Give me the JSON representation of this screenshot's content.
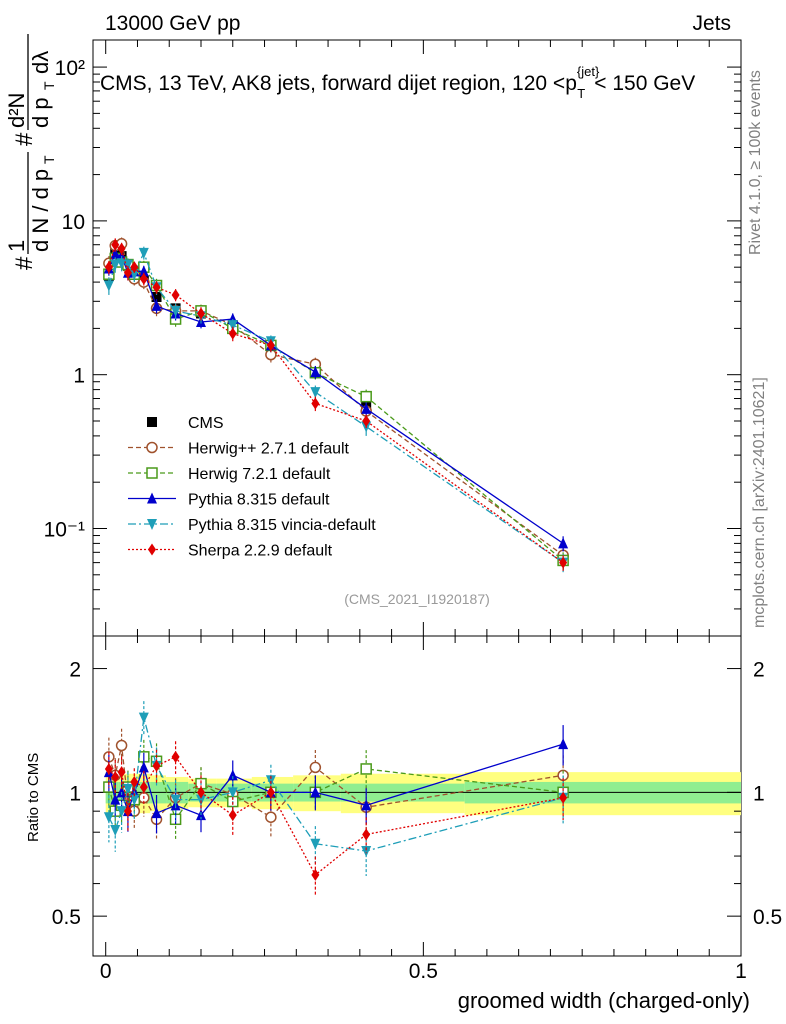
{
  "header": {
    "energy": "13000 GeV pp",
    "category": "Jets",
    "rivet": "Rivet 4.1.0, ≥ 100k events",
    "mcplots": "mcplots.cern.ch [arXiv:2401.10621]",
    "analysis_id": "(CMS_2021_I1920187)"
  },
  "chart_data": [
    {
      "type": "scatter",
      "panel": "main",
      "title": "CMS, 13 TeV, AK8 jets, forward dijet region, 120 <p_T^{jet}< 150 GeV",
      "title_pre": "CMS, 13 TeV, AK8 jets, forward dijet region, 120 <p",
      "title_sup": "{jet}",
      "title_sub": "T",
      "title_post": "< 150 GeV",
      "ylabel_parts": {
        "hash": "#",
        "one": "1",
        "dN": "d N / d p",
        "T": "T",
        "numer": "d²N",
        "denom": "d p",
        "dlam": "dλ"
      },
      "yscale": "log",
      "ylim": [
        0.02,
        150
      ],
      "xlim": [
        -0.02,
        1.0
      ],
      "ytick_labels": [
        "10⁻¹",
        "1",
        "10",
        "10²"
      ],
      "ytick_values": [
        0.1,
        1,
        10,
        100
      ],
      "x": [
        0.005,
        0.015,
        0.025,
        0.035,
        0.045,
        0.06,
        0.08,
        0.11,
        0.15,
        0.2,
        0.26,
        0.33,
        0.41,
        0.72
      ],
      "series": [
        {
          "name": "CMS",
          "color": "#000000",
          "marker": "square-filled",
          "dash": "",
          "values": [
            4.4,
            6.4,
            5.9,
            5.1,
            4.7,
            4.1,
            3.2,
            2.7,
            2.5,
            2.1,
            1.55,
            1.03,
            0.63,
            0.062
          ],
          "errors": [
            0.4,
            0.6,
            0.5,
            0.4,
            0.4,
            0.3,
            0.25,
            0.2,
            0.2,
            0.15,
            0.12,
            0.08,
            0.05,
            0.008
          ]
        },
        {
          "name": "Herwig++ 2.7.1 default",
          "color": "#a0522d",
          "marker": "circle-open",
          "dash": "5,3",
          "values": [
            5.3,
            6.9,
            7.1,
            5.0,
            4.2,
            4.0,
            2.7,
            2.6,
            2.6,
            2.1,
            1.35,
            1.17,
            0.58,
            0.067
          ],
          "errors": [
            0.6,
            0.7,
            0.7,
            0.5,
            0.4,
            0.4,
            0.3,
            0.3,
            0.25,
            0.2,
            0.15,
            0.12,
            0.07,
            0.008
          ]
        },
        {
          "name": "Herwig 7.2.1 default",
          "color": "#4a9a1a",
          "marker": "square-open",
          "dash": "5,3",
          "values": [
            4.5,
            5.7,
            5.4,
            5.2,
            4.5,
            5.0,
            3.8,
            2.3,
            2.6,
            2.0,
            1.55,
            1.03,
            0.72,
            0.062
          ],
          "errors": [
            0.5,
            0.6,
            0.5,
            0.5,
            0.4,
            0.5,
            0.4,
            0.25,
            0.25,
            0.2,
            0.15,
            0.1,
            0.08,
            0.008
          ]
        },
        {
          "name": "Pythia 8.315 default",
          "color": "#0000cc",
          "marker": "triangle-up",
          "dash": "",
          "values": [
            4.9,
            6.1,
            5.9,
            4.6,
            4.7,
            4.7,
            2.8,
            2.5,
            2.2,
            2.3,
            1.55,
            1.04,
            0.6,
            0.08
          ],
          "errors": [
            0.5,
            0.6,
            0.6,
            0.5,
            0.4,
            0.4,
            0.3,
            0.25,
            0.2,
            0.2,
            0.15,
            0.1,
            0.06,
            0.009
          ]
        },
        {
          "name": "Pythia 8.315 vincia-default",
          "color": "#1e9eb8",
          "marker": "triangle-down",
          "dash": "8,3,2,3",
          "values": [
            3.8,
            5.2,
            5.3,
            5.2,
            4.5,
            6.2,
            3.7,
            2.6,
            2.4,
            2.1,
            1.65,
            0.77,
            0.46,
            0.06
          ],
          "errors": [
            0.5,
            0.6,
            0.6,
            0.5,
            0.5,
            0.6,
            0.4,
            0.3,
            0.25,
            0.2,
            0.15,
            0.08,
            0.06,
            0.008
          ]
        },
        {
          "name": "Sherpa 2.2.9 default",
          "color": "#e00000",
          "marker": "diamond",
          "dash": "2,2",
          "values": [
            5.0,
            7.0,
            6.6,
            4.6,
            5.0,
            4.2,
            3.7,
            3.3,
            2.5,
            1.85,
            1.55,
            0.65,
            0.5,
            0.06
          ],
          "errors": [
            0.5,
            0.7,
            0.6,
            0.5,
            0.4,
            0.4,
            0.35,
            0.3,
            0.25,
            0.2,
            0.15,
            0.07,
            0.05,
            0.007
          ]
        }
      ]
    },
    {
      "type": "scatter",
      "panel": "ratio",
      "ylabel": "Ratio to CMS",
      "xlabel": "groomed width (charged-only)",
      "ylim": [
        0.4,
        2.4
      ],
      "yscale": "log",
      "ytick_labels": [
        "0.5",
        "1",
        "2"
      ],
      "ytick_values": [
        0.5,
        1,
        2
      ],
      "xtick_labels": [
        "0",
        "0.5",
        "1"
      ],
      "xtick_values": [
        0,
        0.5,
        1
      ],
      "band_inner": [
        0.06,
        0.06,
        0.06,
        0.06,
        0.06,
        0.06,
        0.06,
        0.06,
        0.05,
        0.05,
        0.05,
        0.05,
        0.05,
        0.06
      ],
      "band_outer": [
        0.12,
        0.12,
        0.11,
        0.11,
        0.11,
        0.11,
        0.1,
        0.09,
        0.08,
        0.08,
        0.09,
        0.1,
        0.11,
        0.12
      ],
      "series": [
        {
          "name": "Herwig++ 2.7.1 default",
          "values": [
            1.22,
            1.1,
            1.3,
            0.95,
            0.9,
            0.97,
            0.86,
            0.97,
            1.05,
            0.99,
            0.87,
            1.15,
            0.92,
            1.1
          ]
        },
        {
          "name": "Herwig 7.2.1 default",
          "values": [
            1.03,
            0.9,
            0.93,
            1.03,
            0.96,
            1.22,
            1.19,
            0.86,
            1.05,
            0.95,
            1.0,
            1.0,
            1.14,
            1.0
          ]
        },
        {
          "name": "Pythia 8.315 default",
          "values": [
            1.12,
            0.96,
            1.0,
            0.9,
            1.0,
            1.15,
            0.89,
            0.93,
            0.88,
            1.1,
            1.0,
            1.0,
            0.93,
            1.31
          ]
        },
        {
          "name": "Pythia 8.315 vincia-default",
          "values": [
            0.87,
            0.81,
            0.9,
            1.02,
            0.96,
            1.52,
            1.16,
            0.96,
            0.96,
            1.0,
            1.07,
            0.75,
            0.72,
            0.97
          ]
        },
        {
          "name": "Sherpa 2.2.9 default",
          "values": [
            1.14,
            1.09,
            1.12,
            0.9,
            1.06,
            1.03,
            1.16,
            1.22,
            1.0,
            0.88,
            1.0,
            0.63,
            0.79,
            0.97
          ]
        }
      ]
    }
  ]
}
